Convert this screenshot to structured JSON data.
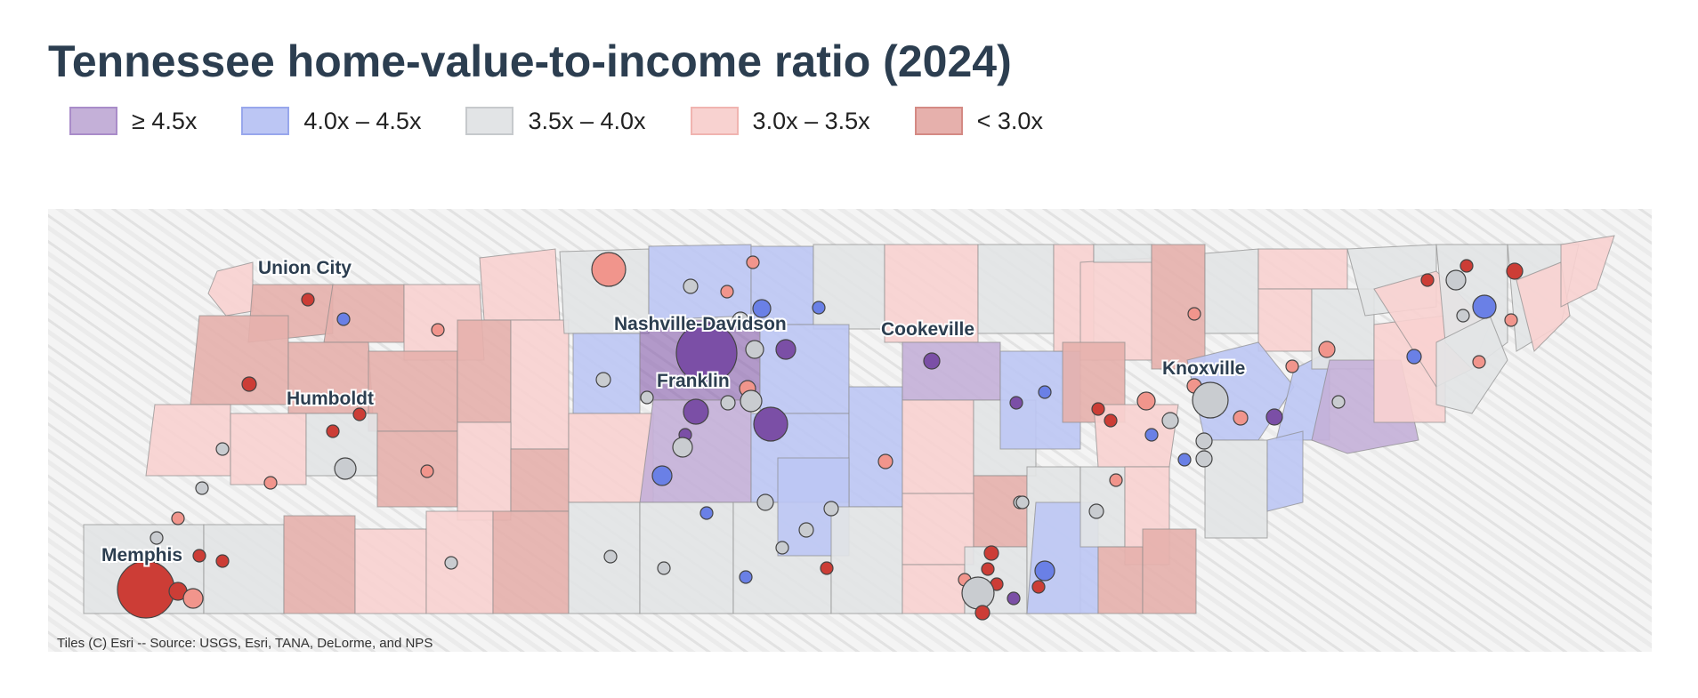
{
  "title": "Tennessee home-value-to-income ratio (2024)",
  "legend": [
    {
      "label": "≥ 4.5x",
      "fill": "#c4b0d8",
      "border": "#a98cc9"
    },
    {
      "label": "4.0x – 4.5x",
      "fill": "#bcc6f4",
      "border": "#98a7ec"
    },
    {
      "label": "3.5x – 4.0x",
      "fill": "#e2e4e6",
      "border": "#c6c9cc"
    },
    {
      "label": "3.0x – 3.5x",
      "fill": "#f8d2d0",
      "border": "#f0b4b0"
    },
    {
      "label": "< 3.0x",
      "fill": "#e6b0ac",
      "border": "#d48a84"
    }
  ],
  "cities": {
    "union_city": "Union City",
    "humboldt": "Humboldt",
    "memphis": "Memphis",
    "nashville": "Nashville-Davidson",
    "franklin": "Franklin",
    "cookeville": "Cookeville",
    "knoxville": "Knoxville"
  },
  "attribution": "Tiles (C) Esri -- Source: USGS, Esri, TANA, DeLorme, and NPS",
  "marker_colors": {
    "high": "#7b4fa6",
    "upper": "#6a80e6",
    "mid": "#c9ccd0",
    "lower": "#f1958c",
    "low": "#cc3d36"
  }
}
